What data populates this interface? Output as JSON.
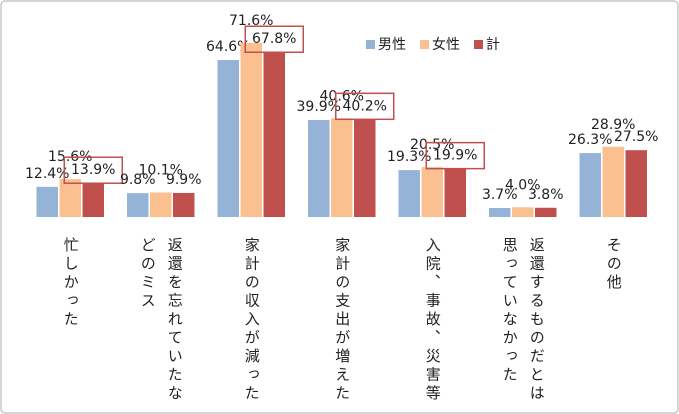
{
  "chart_data": {
    "type": "bar",
    "categories": [
      "忙しかった",
      "返還を忘れていたな\nどのミス",
      "家計の収入が減った",
      "家計の支出が増えた",
      "入院、事故、災害等",
      "返還するものだとは\n思っていなかった",
      "その他"
    ],
    "series": [
      {
        "name": "男性",
        "color": "#95b3d7",
        "values": [
          12.4,
          9.8,
          64.6,
          39.9,
          19.3,
          3.7,
          26.3
        ],
        "value_labels": [
          "12.4%",
          "9.8%",
          "64.6%",
          "39.9%",
          "19.3%",
          "3.7%",
          "26.3%"
        ]
      },
      {
        "name": "女性",
        "color": "#fac090",
        "values": [
          15.6,
          10.1,
          71.6,
          40.6,
          20.5,
          4.0,
          28.9
        ],
        "value_labels": [
          "15.6%",
          "10.1%",
          "71.6%",
          "40.6%",
          "20.5%",
          "4.0%",
          "28.9%"
        ]
      },
      {
        "name": "計",
        "color": "#c0504d",
        "values": [
          13.9,
          9.9,
          67.8,
          40.2,
          19.9,
          3.8,
          27.5
        ],
        "value_labels": [
          "13.9%",
          "9.9%",
          "67.8%",
          "40.2%",
          "19.9%",
          "3.8%",
          "27.5%"
        ]
      }
    ]
  }
}
